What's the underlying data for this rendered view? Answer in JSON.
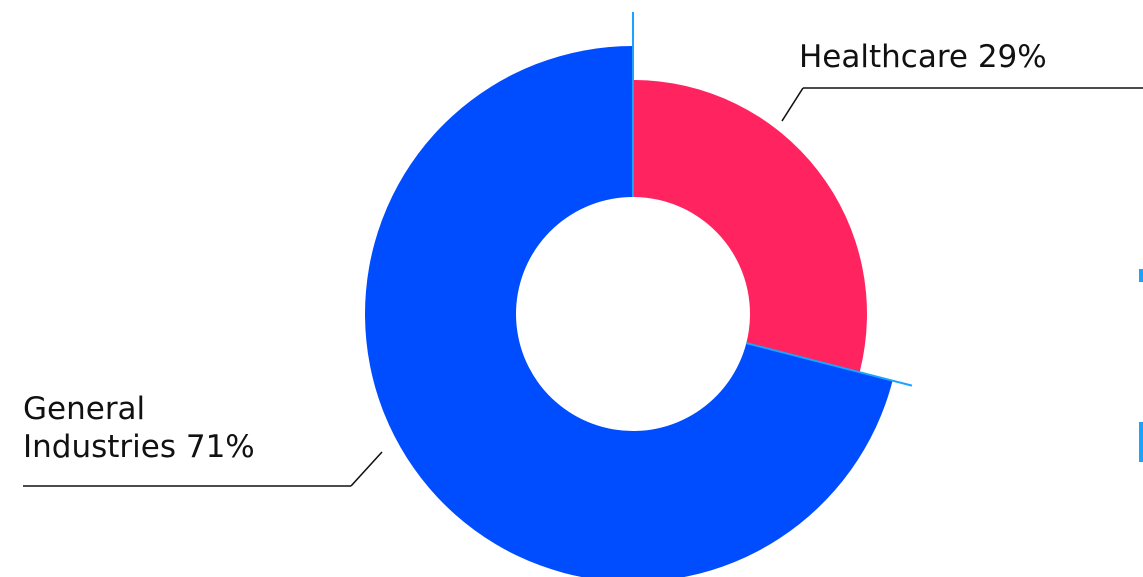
{
  "chart_data": {
    "type": "pie",
    "style": "donut",
    "series": [
      {
        "name": "Healthcare",
        "value": 29,
        "label": "Healthcare 29%",
        "color": "#ff2460"
      },
      {
        "name": "General Industries",
        "value": 71,
        "label_lines": [
          "General",
          "Industries 71%"
        ],
        "color": "#004dff"
      }
    ],
    "colors": {
      "divider": "#1aa3ff",
      "leader_line": "#111111"
    }
  }
}
